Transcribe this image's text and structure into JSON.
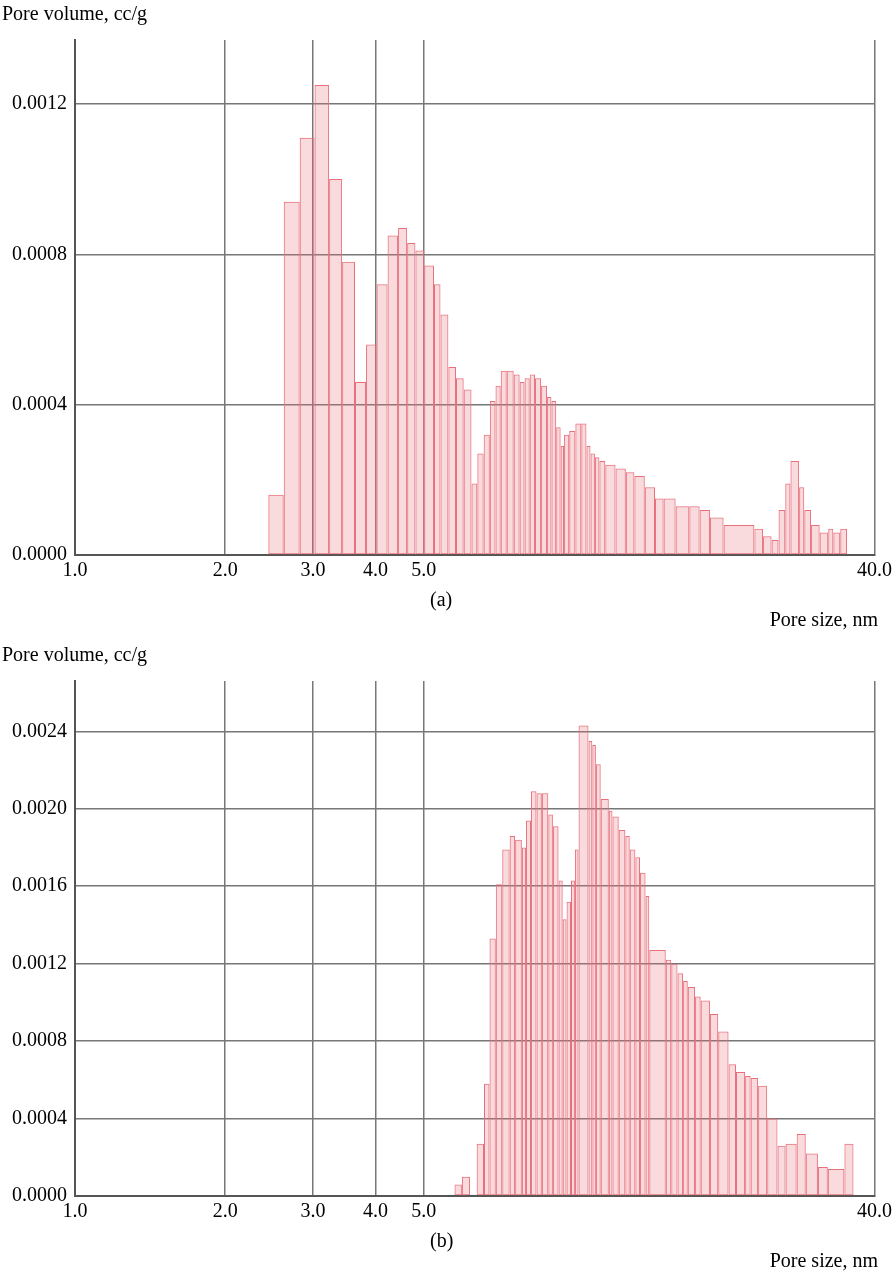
{
  "chart_data": [
    {
      "type": "histogram",
      "ylabel": "Pore volume, cc/g",
      "xlabel": "Pore size, nm",
      "annotations": [
        "(a)"
      ],
      "color": "#e8707c",
      "log": "x",
      "grid": true,
      "legend": false,
      "xlim": [
        1,
        40
      ],
      "xticks": [
        {
          "value": 1,
          "label": "1.0"
        },
        {
          "value": 2,
          "label": "2.0"
        },
        {
          "value": 3,
          "label": "3.0"
        },
        {
          "value": 4,
          "label": "4.0"
        },
        {
          "value": 5,
          "label": "5.0"
        },
        {
          "value": 40,
          "label": "40.0"
        }
      ],
      "ylim": [
        0,
        0.00137
      ],
      "yticks": [
        {
          "value": 0,
          "label": "0.0000"
        },
        {
          "value": 0.0004,
          "label": "0.0004"
        },
        {
          "value": 0.0008,
          "label": "0.0008"
        },
        {
          "value": 0.0012,
          "label": "0.0012"
        }
      ],
      "bins": [
        2.44,
        2.62,
        2.82,
        3.02,
        3.23,
        3.43,
        3.64,
        3.83,
        4.02,
        4.23,
        4.44,
        4.63,
        4.81,
        5.01,
        5.24,
        5.4,
        5.6,
        5.8,
        6.01,
        6.23,
        6.4,
        6.59,
        6.78,
        6.96,
        7.13,
        7.33,
        7.57,
        7.78,
        7.96,
        8.15,
        8.35,
        8.59,
        8.83,
        9.01,
        9.21,
        9.4,
        9.55,
        9.78,
        10.06,
        10.34,
        10.59,
        10.79,
        11.01,
        11.24,
        11.55,
        12.11,
        12.7,
        13.21,
        13.86,
        14.53,
        15.12,
        15.98,
        17.02,
        17.85,
        18.72,
        19.94,
        22.98,
        23.92,
        24.88,
        25.69,
        26.5,
        27.14,
        28.25,
        28.93,
        29.85,
        31.06,
        32.31,
        33.08,
        34.15,
        35.24
      ],
      "values": [
        0.00016,
        0.00094,
        0.00111,
        0.00125,
        0.001,
        0.00078,
        0.00046,
        0.00056,
        0.00072,
        0.00085,
        0.00087,
        0.00083,
        0.00081,
        0.00077,
        0.00072,
        0.00064,
        0.0005,
        0.00047,
        0.00044,
        0.00019,
        0.00027,
        0.00032,
        0.00041,
        0.00045,
        0.00049,
        0.00049,
        0.00048,
        0.00046,
        0.00047,
        0.00048,
        0.00047,
        0.00045,
        0.00042,
        0.00041,
        0.00034,
        0.00029,
        0.00032,
        0.00033,
        0.00035,
        0.00035,
        0.00029,
        0.00027,
        0.00026,
        0.00025,
        0.00024,
        0.00023,
        0.00022,
        0.00021,
        0.00018,
        0.00015,
        0.00015,
        0.00013,
        0.00013,
        0.00012,
        0.0001,
        8e-05,
        7e-05,
        5e-05,
        4e-05,
        0.00012,
        0.00019,
        0.00025,
        0.00018,
        0.00012,
        8e-05,
        6e-05,
        7e-05,
        6e-05,
        7e-05
      ]
    },
    {
      "type": "histogram",
      "ylabel": "Pore volume, cc/g",
      "xlabel": "Pore size, nm",
      "annotations": [
        "(b)"
      ],
      "color": "#e8707c",
      "log": "x",
      "grid": true,
      "legend": false,
      "xlim": [
        1,
        40
      ],
      "xticks": [
        {
          "value": 1,
          "label": "1.0"
        },
        {
          "value": 2,
          "label": "2.0"
        },
        {
          "value": 3,
          "label": "3.0"
        },
        {
          "value": 4,
          "label": "4.0"
        },
        {
          "value": 5,
          "label": "5.0"
        },
        {
          "value": 40,
          "label": "40.0"
        }
      ],
      "ylim": [
        0,
        0.00266
      ],
      "yticks": [
        {
          "value": 0,
          "label": "0.0000"
        },
        {
          "value": 0.0004,
          "label": "0.0004"
        },
        {
          "value": 0.0008,
          "label": "0.0008"
        },
        {
          "value": 0.0012,
          "label": "0.0012"
        },
        {
          "value": 0.0016,
          "label": "0.0016"
        },
        {
          "value": 0.002,
          "label": "0.0020"
        },
        {
          "value": 0.0024,
          "label": "0.0024"
        }
      ],
      "bins": [
        5.76,
        5.96,
        6.19,
        6.38,
        6.6,
        6.77,
        6.97,
        7.18,
        7.43,
        7.62,
        7.86,
        8.01,
        8.2,
        8.41,
        8.62,
        8.88,
        9.07,
        9.31,
        9.49,
        9.66,
        9.86,
        10.04,
        10.21,
        10.69,
        10.88,
        11.06,
        11.31,
        11.74,
        11.94,
        12.29,
        12.67,
        12.93,
        13.27,
        13.56,
        13.91,
        14.15,
        15.27,
        15.66,
        16.12,
        16.54,
        16.9,
        17.48,
        17.94,
        18.72,
        19.45,
        20.4,
        21.11,
        22.02,
        22.59,
        23.38,
        24.38,
        25.57,
        26.54,
        27.93,
        29.13,
        30.81,
        32.25,
        34.81,
        36.31
      ],
      "values": [
        6e-05,
        0.0001,
        0,
        0.00027,
        0.00058,
        0.00133,
        0.00161,
        0.00179,
        0.00186,
        0.00184,
        0.0018,
        0.00194,
        0.00209,
        0.00208,
        0.00208,
        0.00197,
        0.00191,
        0.00163,
        0.00143,
        0.00152,
        0.00163,
        0.00179,
        0.00243,
        0.00235,
        0.00233,
        0.00223,
        0.00205,
        0.00199,
        0.00196,
        0.00189,
        0.00186,
        0.00179,
        0.00175,
        0.00167,
        0.00155,
        0.00127,
        0.00122,
        0.0012,
        0.00115,
        0.00111,
        0.00108,
        0.00103,
        0.00101,
        0.00094,
        0.00085,
        0.00068,
        0.00064,
        0.00062,
        0.00061,
        0.00057,
        0.0004,
        0.00026,
        0.00027,
        0.00032,
        0.00022,
        0.00015,
        0.00014,
        0.00027
      ]
    }
  ]
}
